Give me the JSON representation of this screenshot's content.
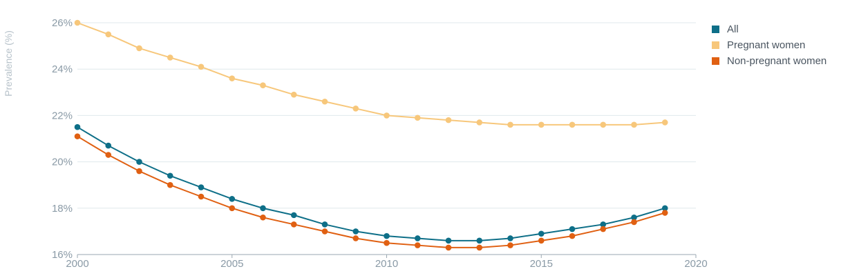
{
  "chart_data": {
    "type": "line",
    "ylabel": "Prevalence (%)",
    "xlabel": "",
    "xlim": [
      2000,
      2020
    ],
    "ylim": [
      16,
      26
    ],
    "x_ticks": [
      2000,
      2005,
      2010,
      2015,
      2020
    ],
    "x_tick_labels": [
      "2000",
      "2005",
      "2010",
      "2015",
      "2020"
    ],
    "y_ticks": [
      16,
      18,
      20,
      22,
      24,
      26
    ],
    "y_tick_labels": [
      "16%",
      "18%",
      "20%",
      "22%",
      "24%",
      "26%"
    ],
    "grid": true,
    "legend_position": "top-right",
    "x": [
      2000,
      2001,
      2002,
      2003,
      2004,
      2005,
      2006,
      2007,
      2008,
      2009,
      2010,
      2011,
      2012,
      2013,
      2014,
      2015,
      2016,
      2017,
      2018,
      2019
    ],
    "series": [
      {
        "name": "All",
        "color": "#0e6f88",
        "values": [
          21.5,
          20.7,
          20.0,
          19.4,
          18.9,
          18.4,
          18.0,
          17.7,
          17.3,
          17.0,
          16.8,
          16.7,
          16.6,
          16.6,
          16.7,
          16.9,
          17.1,
          17.3,
          17.6,
          18.0
        ]
      },
      {
        "name": "Pregnant women",
        "color": "#f7c77b",
        "values": [
          26.0,
          25.5,
          24.9,
          24.5,
          24.1,
          23.6,
          23.3,
          22.9,
          22.6,
          22.3,
          22.0,
          21.9,
          21.8,
          21.7,
          21.6,
          21.6,
          21.6,
          21.6,
          21.6,
          21.7
        ]
      },
      {
        "name": "Non-pregnant women",
        "color": "#e06012",
        "values": [
          21.1,
          20.3,
          19.6,
          19.0,
          18.5,
          18.0,
          17.6,
          17.3,
          17.0,
          16.7,
          16.5,
          16.4,
          16.3,
          16.3,
          16.4,
          16.6,
          16.8,
          17.1,
          17.4,
          17.8
        ]
      }
    ]
  }
}
